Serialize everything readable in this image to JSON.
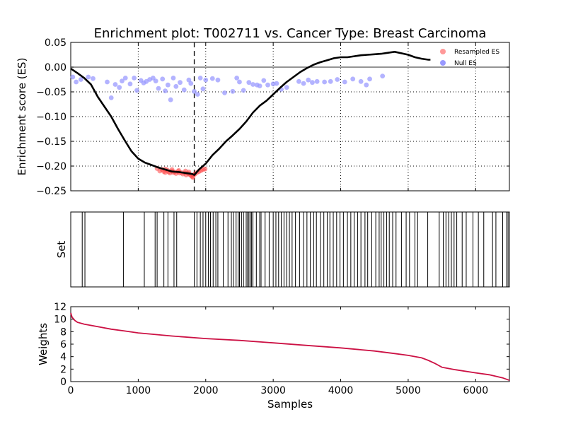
{
  "chart_data": [
    {
      "type": "line",
      "title": "Enrichment plot: T002711 vs. Cancer Type: Breast Carcinoma",
      "xlabel": "",
      "ylabel": "Enrichment score (ES)",
      "xlim": [
        0,
        6500
      ],
      "ylim": [
        -0.25,
        0.05
      ],
      "yticks": [
        0.05,
        0.0,
        -0.05,
        -0.1,
        -0.15,
        -0.2,
        -0.25
      ],
      "ytick_labels": [
        "0.05",
        "0.00",
        "−0.05",
        "−0.10",
        "−0.15",
        "−0.20",
        "−0.25"
      ],
      "grid": true,
      "vline_x": 1830,
      "hline_y": 0,
      "legend_position": "top-right",
      "series": [
        {
          "name": "",
          "color": "#000000",
          "x": [
            0,
            100,
            200,
            300,
            400,
            500,
            600,
            700,
            800,
            900,
            1000,
            1100,
            1200,
            1300,
            1400,
            1500,
            1600,
            1700,
            1800,
            1830,
            1900,
            2000,
            2100,
            2200,
            2300,
            2400,
            2500,
            2600,
            2700,
            2800,
            2900,
            3000,
            3100,
            3200,
            3300,
            3400,
            3500,
            3600,
            3700,
            3800,
            3900,
            4000,
            4100,
            4200,
            4300,
            4400,
            4500,
            4600,
            4700,
            4800,
            4900,
            5000,
            5100,
            5200,
            5300,
            5330
          ],
          "y": [
            -0.003,
            -0.012,
            -0.022,
            -0.035,
            -0.06,
            -0.08,
            -0.1,
            -0.125,
            -0.148,
            -0.17,
            -0.185,
            -0.193,
            -0.198,
            -0.203,
            -0.207,
            -0.211,
            -0.212,
            -0.214,
            -0.216,
            -0.218,
            -0.207,
            -0.195,
            -0.178,
            -0.165,
            -0.15,
            -0.138,
            -0.125,
            -0.11,
            -0.092,
            -0.078,
            -0.068,
            -0.055,
            -0.042,
            -0.03,
            -0.02,
            -0.01,
            -0.002,
            0.005,
            0.01,
            0.014,
            0.018,
            0.02,
            0.02,
            0.022,
            0.024,
            0.025,
            0.026,
            0.027,
            0.029,
            0.031,
            0.028,
            0.025,
            0.02,
            0.017,
            0.015,
            0.015
          ]
        },
        {
          "name": "Resampled ES",
          "type": "scatter",
          "color": "#ff9999",
          "x": [
            1280,
            1320,
            1350,
            1380,
            1400,
            1430,
            1450,
            1470,
            1500,
            1520,
            1540,
            1560,
            1590,
            1610,
            1640,
            1660,
            1690,
            1710,
            1740,
            1760,
            1780,
            1800,
            1810,
            1840,
            1870,
            1900,
            1930,
            1960,
            1990,
            1700,
            1600,
            1500,
            1400,
            1750,
            1820
          ],
          "y": [
            -0.205,
            -0.21,
            -0.207,
            -0.211,
            -0.213,
            -0.208,
            -0.212,
            -0.214,
            -0.21,
            -0.213,
            -0.212,
            -0.215,
            -0.211,
            -0.214,
            -0.213,
            -0.216,
            -0.214,
            -0.218,
            -0.215,
            -0.217,
            -0.219,
            -0.221,
            -0.223,
            -0.216,
            -0.213,
            -0.211,
            -0.209,
            -0.207,
            -0.206,
            -0.21,
            -0.209,
            -0.207,
            -0.206,
            -0.212,
            -0.218
          ]
        },
        {
          "name": "Null ES",
          "type": "scatter",
          "color": "#9999ff",
          "x": [
            30,
            80,
            150,
            260,
            330,
            540,
            600,
            660,
            720,
            760,
            810,
            880,
            940,
            980,
            1040,
            1080,
            1120,
            1170,
            1220,
            1260,
            1300,
            1360,
            1400,
            1440,
            1480,
            1520,
            1560,
            1620,
            1680,
            1750,
            1780,
            1830,
            1880,
            1920,
            1960,
            2000,
            2100,
            2180,
            2280,
            2400,
            2460,
            2500,
            2560,
            2640,
            2700,
            2760,
            2800,
            2860,
            2920,
            3000,
            3050,
            3120,
            3200,
            3380,
            3450,
            3520,
            3580,
            3650,
            3760,
            3850,
            3950,
            4060,
            4180,
            4300,
            4380,
            4430,
            4620
          ],
          "y": [
            -0.02,
            -0.03,
            -0.025,
            -0.02,
            -0.023,
            -0.03,
            -0.062,
            -0.035,
            -0.041,
            -0.028,
            -0.022,
            -0.034,
            -0.022,
            -0.047,
            -0.027,
            -0.032,
            -0.029,
            -0.025,
            -0.022,
            -0.028,
            -0.043,
            -0.024,
            -0.048,
            -0.036,
            -0.066,
            -0.022,
            -0.039,
            -0.031,
            -0.046,
            -0.026,
            -0.033,
            -0.049,
            -0.055,
            -0.022,
            -0.044,
            -0.026,
            -0.023,
            -0.026,
            -0.052,
            -0.049,
            -0.022,
            -0.03,
            -0.047,
            -0.031,
            -0.035,
            -0.036,
            -0.038,
            -0.027,
            -0.036,
            -0.034,
            -0.033,
            -0.045,
            -0.041,
            -0.029,
            -0.033,
            -0.026,
            -0.031,
            -0.029,
            -0.03,
            -0.029,
            -0.025,
            -0.03,
            -0.024,
            -0.029,
            -0.036,
            -0.024,
            -0.018
          ]
        }
      ]
    },
    {
      "type": "barcode",
      "ylabel": "Set",
      "xlim": [
        0,
        6500
      ],
      "color": "#000000",
      "positions": [
        170,
        210,
        780,
        1090,
        1250,
        1280,
        1380,
        1440,
        1530,
        1570,
        1830,
        1870,
        1920,
        1960,
        2000,
        2040,
        2070,
        2110,
        2150,
        2180,
        2260,
        2330,
        2380,
        2410,
        2450,
        2480,
        2500,
        2530,
        2560,
        2600,
        2620,
        2640,
        2660,
        2680,
        2700,
        2750,
        2800,
        2820,
        2880,
        2940,
        3000,
        3040,
        3080,
        3120,
        3160,
        3200,
        3240,
        3280,
        3330,
        3390,
        3450,
        3500,
        3550,
        3600,
        3640,
        3700,
        3750,
        3800,
        3840,
        3890,
        3940,
        3990,
        4040,
        4100,
        4150,
        4200,
        4250,
        4300,
        4360,
        4400,
        4460,
        4520,
        4570,
        4600,
        4640,
        4680,
        4720,
        4770,
        4820,
        4900,
        4970,
        5020,
        5100,
        5140,
        5290,
        5460,
        5520,
        5560,
        5600,
        5640,
        5680,
        5720,
        5800,
        5860,
        5960,
        6040,
        6120,
        6250,
        6300,
        6400,
        6460,
        6480
      ]
    },
    {
      "type": "line",
      "xlabel": "Samples",
      "ylabel": "Weights",
      "xlim": [
        0,
        6500
      ],
      "ylim": [
        0,
        12
      ],
      "xticks": [
        0,
        1000,
        2000,
        3000,
        4000,
        5000,
        6000
      ],
      "yticks": [
        0,
        2,
        4,
        6,
        8,
        10,
        12
      ],
      "grid": false,
      "series": [
        {
          "name": "",
          "color": "#cc1144",
          "x": [
            0,
            20,
            60,
            100,
            200,
            400,
            600,
            800,
            1000,
            1500,
            2000,
            2500,
            3000,
            3500,
            4000,
            4500,
            4800,
            5000,
            5200,
            5300,
            5400,
            5450,
            5500,
            5700,
            6000,
            6200,
            6400,
            6500
          ],
          "y": [
            11.0,
            10.3,
            9.8,
            9.5,
            9.2,
            8.8,
            8.4,
            8.1,
            7.8,
            7.3,
            6.9,
            6.6,
            6.2,
            5.8,
            5.4,
            4.9,
            4.5,
            4.2,
            3.8,
            3.4,
            2.9,
            2.6,
            2.3,
            1.9,
            1.4,
            1.1,
            0.6,
            0.2
          ]
        }
      ]
    }
  ]
}
